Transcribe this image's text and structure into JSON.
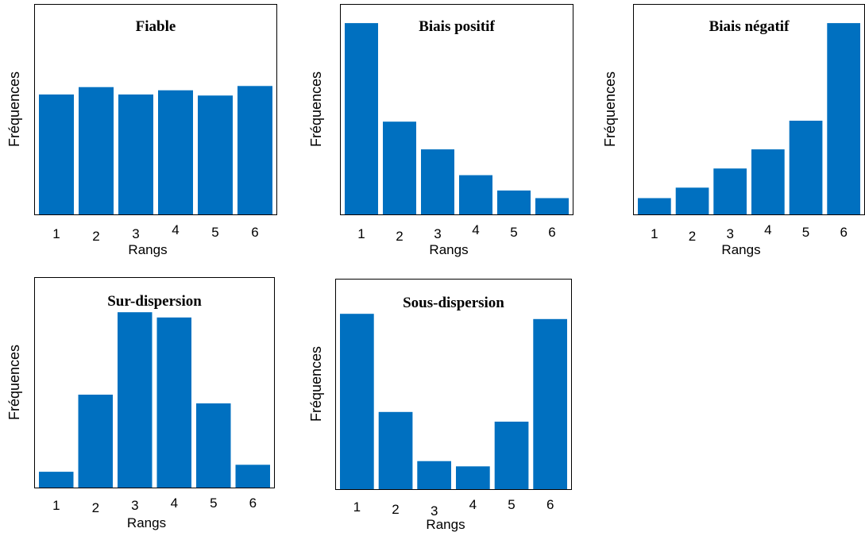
{
  "chart_data": [
    {
      "type": "bar",
      "title": "Fiable",
      "xlabel": "Rangs",
      "ylabel": "Fréquences",
      "categories": [
        "1",
        "2",
        "3",
        "4",
        "5",
        "6"
      ],
      "values": [
        57,
        60.5,
        57,
        59,
        56.5,
        61
      ],
      "ylim": [
        0,
        100
      ],
      "color": "#0070C0"
    },
    {
      "type": "bar",
      "title": "Biais positif",
      "xlabel": "Rangs",
      "ylabel": "Fréquences",
      "categories": [
        "1",
        "2",
        "3",
        "4",
        "5",
        "6"
      ],
      "values": [
        100,
        48.5,
        34,
        20.5,
        12.5,
        8.5
      ],
      "ylim": [
        0,
        110
      ],
      "color": "#0070C0"
    },
    {
      "type": "bar",
      "title": "Biais négatif",
      "xlabel": "Rangs",
      "ylabel": "Fréquences",
      "categories": [
        "1",
        "2",
        "3",
        "4",
        "5",
        "6"
      ],
      "values": [
        8.5,
        14,
        24,
        34,
        49,
        100
      ],
      "ylim": [
        0,
        110
      ],
      "color": "#0070C0"
    },
    {
      "type": "bar",
      "title": "Sur-dispersion",
      "xlabel": "Rangs",
      "ylabel": "Fréquences",
      "categories": [
        "1",
        "2",
        "3",
        "4",
        "5",
        "6"
      ],
      "values": [
        9,
        53,
        100,
        97,
        48,
        13
      ],
      "ylim": [
        0,
        120
      ],
      "color": "#0070C0"
    },
    {
      "type": "bar",
      "title": "Sous-dispersion",
      "xlabel": "Rangs",
      "ylabel": "Fréquences",
      "categories": [
        "1",
        "2",
        "3",
        "4",
        "5",
        "6"
      ],
      "values": [
        100,
        44,
        16,
        13,
        38.5,
        97
      ],
      "ylim": [
        0,
        120
      ],
      "color": "#0070C0"
    }
  ]
}
